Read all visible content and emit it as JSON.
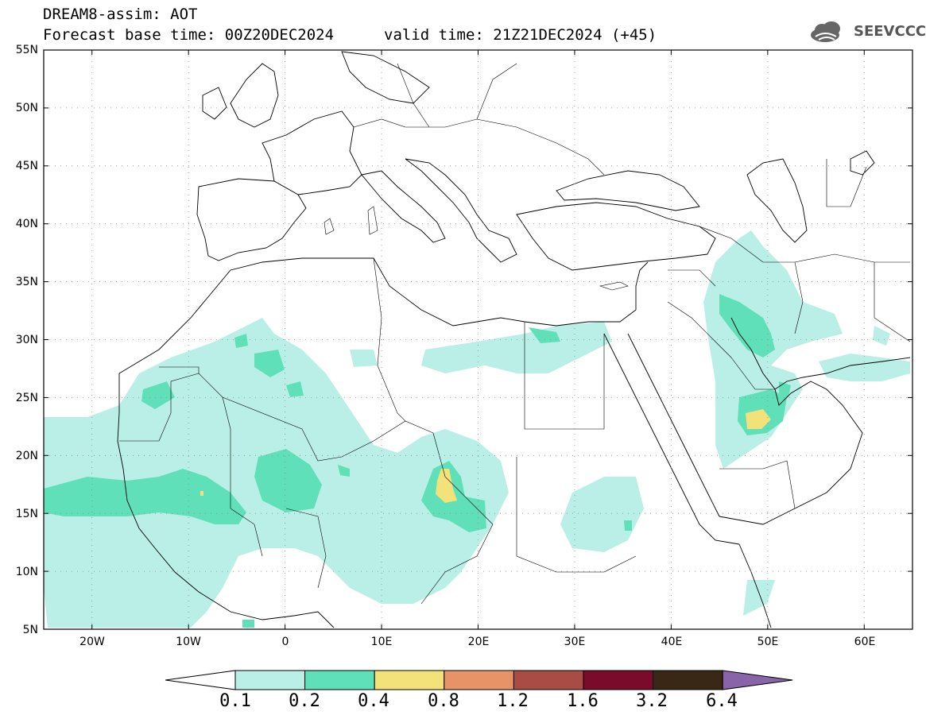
{
  "header": {
    "line1": "DREAM8-assim: AOT",
    "line2": "Forecast base time: 00Z20DEC2024",
    "valid": "valid time: 21Z21DEC2024 (+45)"
  },
  "logo": {
    "text": "SEEVCCC",
    "icon": "cloud-icon"
  },
  "map": {
    "lat_labels": [
      "55N",
      "50N",
      "45N",
      "40N",
      "35N",
      "30N",
      "25N",
      "20N",
      "15N",
      "10N",
      "5N"
    ],
    "lon_labels": [
      "20W",
      "10W",
      "0",
      "10E",
      "20E",
      "30E",
      "40E",
      "50E",
      "60E"
    ],
    "lat_range": [
      5,
      55
    ],
    "lon_range": [
      -25,
      65
    ],
    "grid": "dotted",
    "variable": "AOT"
  },
  "colorbar": {
    "labels": [
      "0.1",
      "0.2",
      "0.4",
      "0.8",
      "1.2",
      "1.6",
      "3.2",
      "6.4"
    ],
    "colors": [
      "#b9efe6",
      "#5fe0b8",
      "#f3e27a",
      "#e89268",
      "#a94c45",
      "#7a0b2a",
      "#3a2817",
      "#8a64a8"
    ]
  },
  "palette": {
    "level1": "#b9efe6",
    "level2": "#5fe0b8",
    "level3": "#f3e27a"
  }
}
